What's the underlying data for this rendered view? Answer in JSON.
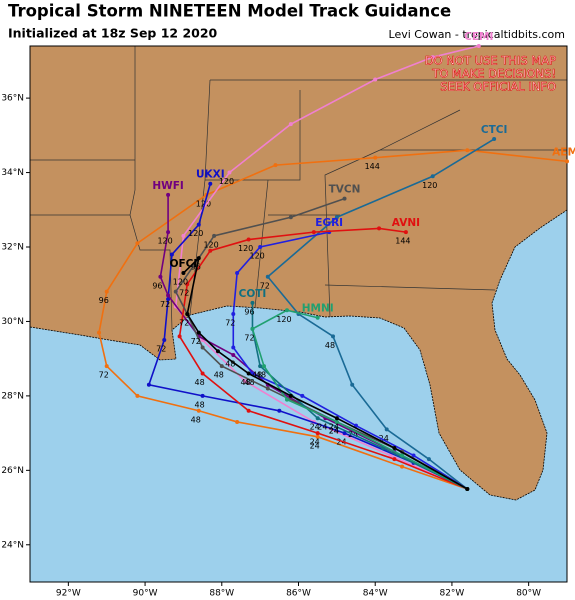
{
  "map": {
    "title": "Tropical Storm NINETEEN Model Track Guidance",
    "subtitle": "Initialized at 18z Sep 12 2020",
    "credit": "Levi Cowan - tropicaltidbits.com",
    "warning": [
      "DO NOT USE THIS MAP",
      "TO MAKE DECISIONS!",
      "SEEK OFFICIAL INFO"
    ],
    "xlim": [
      -93,
      -79
    ],
    "ylim": [
      23,
      37.4
    ],
    "xticks": [
      {
        "value": -92,
        "label": "92°W"
      },
      {
        "value": -90,
        "label": "90°W"
      },
      {
        "value": -88,
        "label": "88°W"
      },
      {
        "value": -86,
        "label": "86°W"
      },
      {
        "value": -84,
        "label": "84°W"
      },
      {
        "value": -82,
        "label": "82°W"
      },
      {
        "value": -80,
        "label": "80°W"
      }
    ],
    "yticks": [
      {
        "value": 24,
        "label": "24°N"
      },
      {
        "value": 26,
        "label": "26°N"
      },
      {
        "value": 28,
        "label": "28°N"
      },
      {
        "value": 30,
        "label": "30°N"
      },
      {
        "value": 32,
        "label": "32°N"
      },
      {
        "value": 34,
        "label": "34°N"
      },
      {
        "value": 36,
        "label": "36°N"
      }
    ],
    "tracks": [
      {
        "name": "AEMI",
        "color": "#f07010",
        "lon": [
          -81.6,
          -83.3,
          -85.5,
          -87.6,
          -88.6,
          -90.2,
          -91.0,
          -91.2,
          -91.0,
          -90.2,
          -88.4,
          -86.6,
          -84.0,
          -81.6,
          -79.0
        ],
        "lat": [
          25.5,
          26.1,
          26.9,
          27.3,
          27.6,
          28.0,
          28.8,
          29.7,
          30.8,
          32.1,
          33.4,
          34.2,
          34.4,
          34.6,
          34.3
        ],
        "hours": [
          null,
          null,
          24,
          null,
          48,
          null,
          72,
          null,
          96,
          null,
          120,
          null,
          144,
          null,
          null
        ]
      },
      {
        "name": "CEMI",
        "color": "#f080d0",
        "lon": [
          -81.6,
          -83.6,
          -85.6,
          -87.4,
          -88.5,
          -89.2,
          -89.0,
          -87.8,
          -86.2,
          -84.0,
          -82.5,
          -81.3
        ],
        "lat": [
          25.5,
          26.4,
          27.3,
          28.4,
          29.5,
          30.4,
          32.3,
          34.0,
          35.3,
          36.5,
          37.1,
          37.4
        ],
        "hours": [
          null,
          null,
          null,
          null,
          null,
          null,
          null,
          120,
          null,
          null,
          null,
          null
        ]
      },
      {
        "name": "UKXI",
        "color": "#1010c8",
        "lon": [
          -81.6,
          -83.0,
          -84.8,
          -86.5,
          -88.5,
          -89.9,
          -89.5,
          -89.4,
          -89.3,
          -88.6,
          -88.3
        ],
        "lat": [
          25.5,
          26.2,
          27.0,
          27.6,
          28.0,
          28.3,
          29.5,
          30.6,
          31.8,
          32.6,
          33.7
        ],
        "hours": [
          null,
          null,
          24,
          null,
          48,
          null,
          72,
          null,
          null,
          120,
          null
        ]
      },
      {
        "name": "HWFI",
        "color": "#700080",
        "lon": [
          -81.6,
          -83.5,
          -85.3,
          -86.8,
          -87.7,
          -88.6,
          -89.4,
          -89.6,
          -89.4,
          -89.4
        ],
        "lat": [
          25.5,
          26.5,
          27.4,
          28.3,
          29.1,
          29.6,
          30.7,
          31.2,
          32.4,
          33.4
        ],
        "hours": [
          null,
          null,
          24,
          null,
          48,
          null,
          72,
          96,
          120,
          null
        ]
      },
      {
        "name": "CTCI",
        "color": "#1a6a96",
        "lon": [
          -81.6,
          -82.6,
          -83.7,
          -84.6,
          -85.1,
          -86.0,
          -86.8,
          -85.0,
          -82.5,
          -80.9
        ],
        "lat": [
          25.5,
          26.3,
          27.1,
          28.3,
          29.6,
          30.2,
          31.2,
          32.8,
          33.9,
          34.9
        ],
        "hours": [
          null,
          null,
          24,
          null,
          48,
          null,
          72,
          null,
          120,
          null
        ]
      },
      {
        "name": "EGRI",
        "color": "#2020e0",
        "lon": [
          -81.6,
          -83.0,
          -84.5,
          -85.9,
          -87.2,
          -87.7,
          -87.7,
          -87.6,
          -87.0,
          -85.2
        ],
        "lat": [
          25.5,
          26.4,
          27.2,
          28.0,
          28.6,
          29.3,
          30.2,
          31.3,
          32.0,
          32.4
        ],
        "hours": [
          null,
          null,
          24,
          null,
          48,
          null,
          72,
          null,
          120,
          null
        ]
      },
      {
        "name": "AVNI",
        "color": "#e01010",
        "lon": [
          -81.6,
          -83.5,
          -85.5,
          -87.3,
          -88.5,
          -89.1,
          -88.9,
          -88.3,
          -87.3,
          -85.6,
          -83.9,
          -83.2
        ],
        "lat": [
          25.5,
          26.3,
          27.0,
          27.6,
          28.6,
          29.6,
          31.0,
          31.9,
          32.2,
          32.4,
          32.5,
          32.4
        ],
        "hours": [
          null,
          null,
          24,
          null,
          48,
          null,
          72,
          null,
          120,
          null,
          null,
          144
        ]
      },
      {
        "name": "TVCN",
        "color": "#505050",
        "lon": [
          -81.6,
          -83.3,
          -85.0,
          -86.8,
          -88.0,
          -88.5,
          -88.9,
          -89.2,
          -88.2,
          -86.2,
          -84.8
        ],
        "lat": [
          25.5,
          26.5,
          27.3,
          28.2,
          28.8,
          29.3,
          30.2,
          30.8,
          32.3,
          32.8,
          33.3
        ],
        "hours": [
          null,
          null,
          24,
          null,
          48,
          null,
          72,
          null,
          120,
          null,
          null
        ]
      },
      {
        "name": "COTI",
        "color": "#107080",
        "lon": [
          -81.6,
          -83.8,
          -85.5,
          -87.0,
          -87.2,
          -87.2
        ],
        "lat": [
          25.5,
          26.6,
          27.4,
          28.8,
          29.8,
          30.5
        ],
        "hours": [
          null,
          null,
          24,
          48,
          72,
          96
        ]
      },
      {
        "name": "HMNI",
        "color": "#20a070",
        "lon": [
          -81.6,
          -83.3,
          -85.0,
          -86.3,
          -86.9,
          -87.2,
          -86.3,
          -85.5
        ],
        "lat": [
          25.5,
          26.4,
          27.3,
          27.9,
          28.8,
          29.8,
          30.3,
          30.1
        ],
        "hours": [
          null,
          null,
          24,
          null,
          48,
          null,
          120,
          null
        ]
      },
      {
        "name": "OFCI",
        "color": "#000000",
        "lon": [
          -81.6,
          -83.5,
          -85.0,
          -86.2,
          -87.3,
          -88.1,
          -88.6,
          -88.9,
          -88.6,
          -89.0
        ],
        "lat": [
          25.5,
          26.6,
          27.4,
          28.0,
          28.6,
          29.2,
          29.7,
          30.2,
          31.7,
          31.3
        ],
        "hours": [
          null,
          null,
          24,
          null,
          48,
          null,
          72,
          null,
          96,
          120
        ]
      }
    ]
  }
}
